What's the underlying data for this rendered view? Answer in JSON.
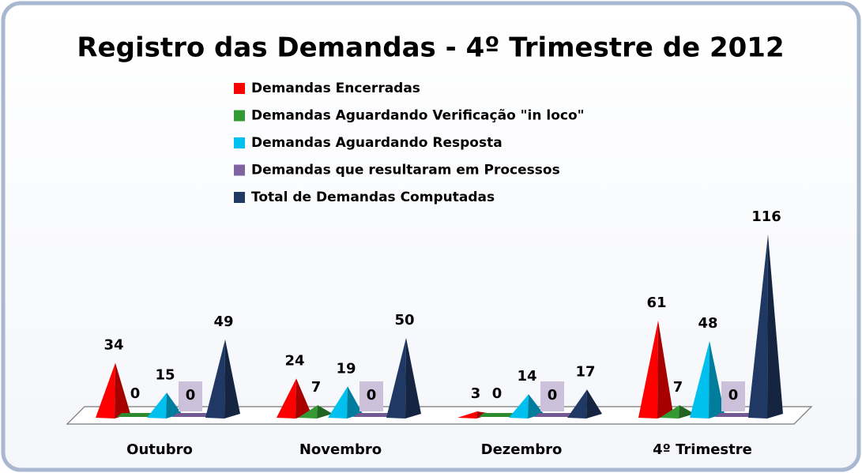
{
  "chart_data": {
    "type": "pyramid3d",
    "title": "Registro das Demandas - 4º Trimestre de 2012",
    "categories": [
      "Outubro",
      "Novembro",
      "Dezembro",
      "4º Trimestre"
    ],
    "series": [
      {
        "name": "Demandas Encerradas",
        "color": "#ff0000",
        "values": [
          34,
          24,
          3,
          61
        ]
      },
      {
        "name": "Demandas Aguardando Verificação \"in loco\"",
        "color": "#339933",
        "values": [
          0,
          7,
          0,
          7
        ]
      },
      {
        "name": "Demandas Aguardando Resposta",
        "color": "#00c0f0",
        "values": [
          15,
          19,
          14,
          48
        ]
      },
      {
        "name": "Demandas que resultaram em Processos",
        "color": "#8064a2",
        "values": [
          0,
          0,
          0,
          0
        ]
      },
      {
        "name": "Total de Demandas Computadas",
        "color": "#1f3864",
        "values": [
          49,
          50,
          17,
          116
        ]
      }
    ]
  }
}
